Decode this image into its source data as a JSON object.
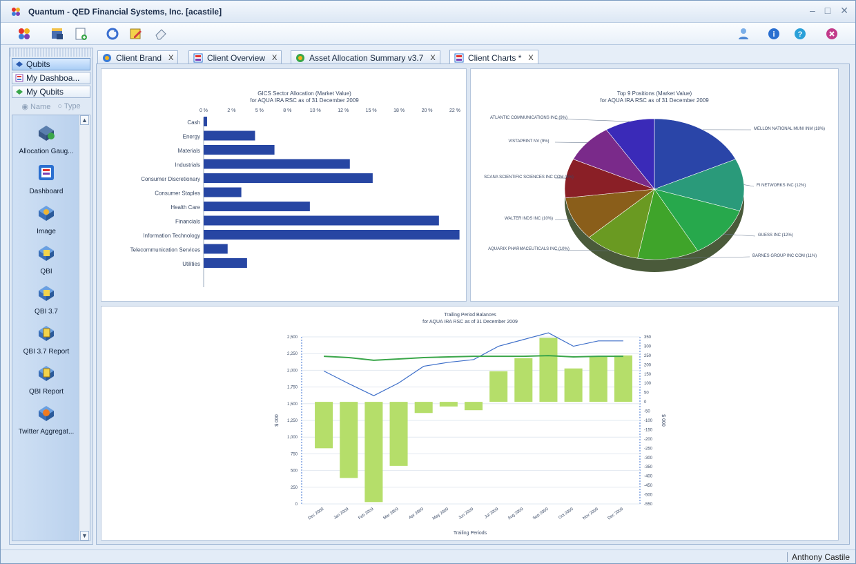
{
  "window": {
    "title": "Quantum - QED Financial Systems, Inc. [acastile]"
  },
  "toolbar": {
    "icons": [
      "qubits-icon",
      "database-icon",
      "new-document-icon",
      "refresh-icon",
      "edit-icon",
      "eraser-icon",
      "user-icon",
      "info-icon",
      "help-icon",
      "exit-icon"
    ]
  },
  "nav": {
    "buttons": [
      "Qubits",
      "My Dashboa...",
      "My Qubits"
    ],
    "radio": [
      "Name",
      "Type"
    ],
    "items": [
      "Allocation Gaug...",
      "Dashboard",
      "Image",
      "QBI",
      "QBI 3.7",
      "QBI 3.7 Report",
      "QBI Report",
      "Twitter Aggregat..."
    ]
  },
  "tabs": [
    {
      "label": "Client Brand",
      "close": "X"
    },
    {
      "label": "Client Overview",
      "close": "X"
    },
    {
      "label": "Asset Allocation Summary v3.7",
      "close": "X"
    },
    {
      "label": "Client Charts *",
      "close": "X"
    }
  ],
  "status": {
    "user": "Anthony Castile"
  },
  "chart_data": [
    {
      "type": "bar",
      "orientation": "horizontal",
      "title": "GICS Sector Allocation (Market Value)",
      "subtitle": "for AQUA IRA RSC as of 31 December 2009",
      "categories": [
        "Cash",
        "Energy",
        "Materials",
        "Industrials",
        "Consumer Discretionary",
        "Consumer Staples",
        "Health Care",
        "Financials",
        "Information Technology",
        "Telecommunication Services",
        "Utilities"
      ],
      "values": [
        0.3,
        4.5,
        6.2,
        12.8,
        14.8,
        3.3,
        9.3,
        20.6,
        22.4,
        2.1,
        3.8
      ],
      "xlim": [
        0,
        22
      ],
      "ticks": [
        "0 %",
        "2 %",
        "5 %",
        "8 %",
        "10 %",
        "12 %",
        "15 %",
        "18 %",
        "20 %",
        "22 %"
      ],
      "color": "#2746a3",
      "grid": false
    },
    {
      "type": "pie",
      "title": "Top 9 Positions (Market Value)",
      "subtitle": "for AQUA IRA RSC as of 31 December 2009",
      "slices": [
        {
          "label": "MELLON NATIONAL MUNI INM (18%)",
          "value": 18,
          "color": "#2a45a8"
        },
        {
          "label": "FI NETWORKS INC (12%)",
          "value": 12,
          "color": "#2a9a7a"
        },
        {
          "label": "GUESS INC (12%)",
          "value": 12,
          "color": "#27a84c"
        },
        {
          "label": "BARNES GROUP INC COM (11%)",
          "value": 11,
          "color": "#3fa42a"
        },
        {
          "label": "AQUARIX PHARMACEUTICALS INC (10%)",
          "value": 10,
          "color": "#6a9a22"
        },
        {
          "label": "WALTER INDS INC (10%)",
          "value": 10,
          "color": "#8a5e1a"
        },
        {
          "label": "SCANA SCIENTIFIC SCIENCES INC COM (9%)",
          "value": 9,
          "color": "#8a1f26"
        },
        {
          "label": "VISTAPRINT NV (9%)",
          "value": 9,
          "color": "#7a2a8a"
        },
        {
          "label": "ATLANTIC COMMUNICATIONS INC (9%)",
          "value": 9,
          "color": "#3a2ab8"
        }
      ]
    },
    {
      "type": "bar-line",
      "title": "Trailing Period Balances",
      "subtitle": "for AQUA IRA RSC as of 31 December 2009",
      "xlabel": "Trailing Periods",
      "ylabel_left": "$ 000",
      "ylabel_right": "$ 000",
      "categories": [
        "Dec 2008",
        "Jan 2009",
        "Feb 2009",
        "Mar 2009",
        "Apr 2009",
        "May 2009",
        "Jun 2009",
        "Jul 2009",
        "Aug 2009",
        "Sep 2009",
        "Oct 2009",
        "Nov 2009",
        "Dec 2009"
      ],
      "left_axis": {
        "min": 0,
        "max": 2500,
        "ticks": [
          "0",
          "250",
          "500",
          "750",
          "1,000",
          "1,250",
          "1,500",
          "1,750",
          "2,000",
          "2,250",
          "2,500"
        ]
      },
      "right_axis": {
        "min": -550,
        "max": 350,
        "ticks": [
          "-550",
          "-500",
          "-450",
          "-400",
          "-350",
          "-300",
          "-250",
          "-200",
          "-150",
          "-100",
          "-50",
          "0",
          "50",
          "100",
          "150",
          "200",
          "250",
          "300",
          "350"
        ]
      },
      "series": [
        {
          "name": "",
          "kind": "bar",
          "axis": "right",
          "color": "#b5de6a",
          "values": [
            -250,
            -410,
            -540,
            -345,
            -60,
            -25,
            -45,
            165,
            235,
            345,
            180,
            245,
            250
          ]
        },
        {
          "name": "",
          "kind": "line",
          "axis": "left",
          "color": "#3e6fc9",
          "values": [
            1990,
            1800,
            1620,
            1810,
            2060,
            2120,
            2160,
            2360,
            2460,
            2560,
            2360,
            2440,
            2440
          ]
        },
        {
          "name": "",
          "kind": "line",
          "axis": "left",
          "color": "#3aa64a",
          "values": [
            2210,
            2190,
            2150,
            2170,
            2190,
            2200,
            2210,
            2210,
            2210,
            2220,
            2200,
            2210,
            2210
          ]
        }
      ]
    }
  ]
}
